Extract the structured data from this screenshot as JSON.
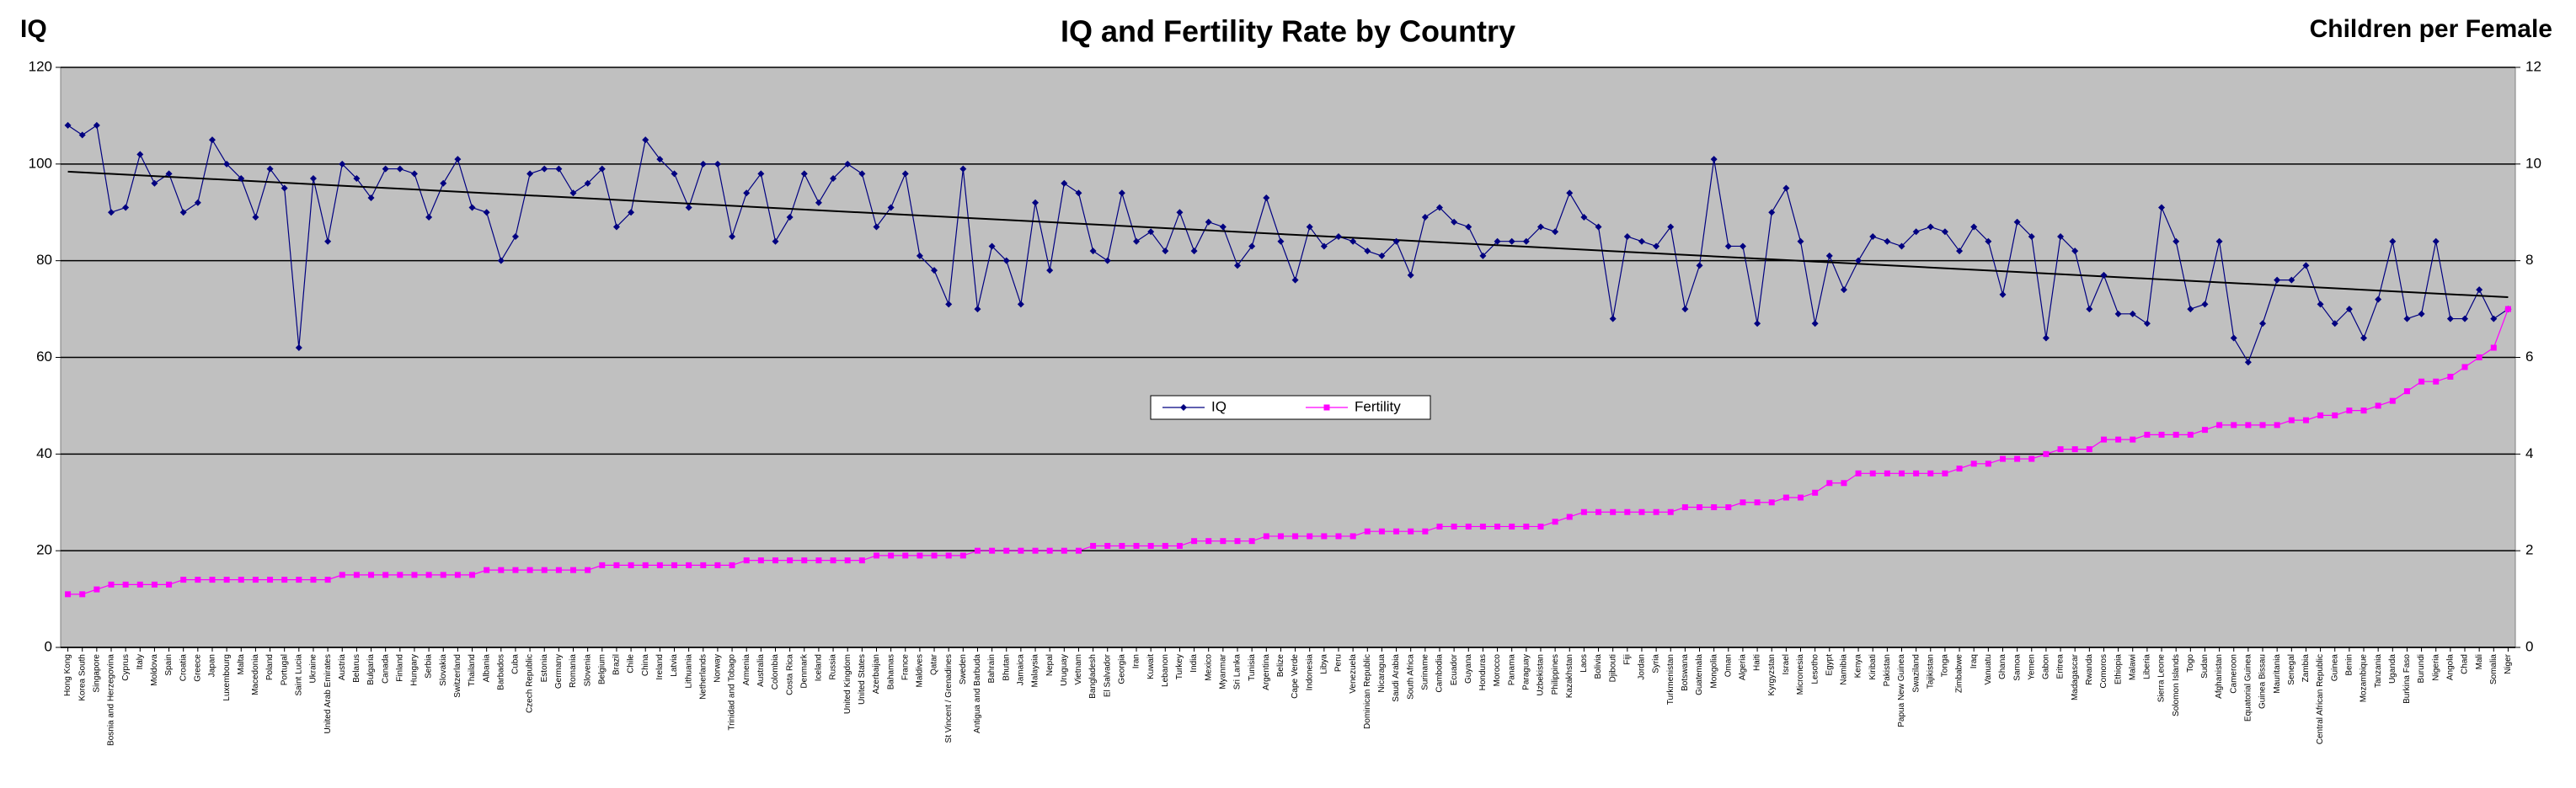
{
  "chart_data": {
    "type": "line",
    "title": "IQ and Fertility Rate by Country",
    "y_label": "IQ",
    "y2_label": "Children per Female",
    "categories": [
      "Hong Kong",
      "Korea South",
      "Singapore",
      "Bosnia and Herzegovina",
      "Cyprus",
      "Italy",
      "Moldova",
      "Spain",
      "Croatia",
      "Greece",
      "Japan",
      "Luxembourg",
      "Malta",
      "Macedonia",
      "Poland",
      "Portugal",
      "Saint Lucia",
      "Ukraine",
      "United Arab Emirates",
      "Austria",
      "Belarus",
      "Bulgaria",
      "Canada",
      "Finland",
      "Hungary",
      "Serbia",
      "Slovakia",
      "Switzerland",
      "Thailand",
      "Albania",
      "Barbados",
      "Cuba",
      "Czech Republic",
      "Estonia",
      "Germany",
      "Romania",
      "Slovenia",
      "Belgium",
      "Brazil",
      "Chile",
      "China",
      "Ireland",
      "Latvia",
      "Lithuania",
      "Netherlands",
      "Norway",
      "Trinidad and Tobago",
      "Armenia",
      "Australia",
      "Colombia",
      "Costa Rica",
      "Denmark",
      "Iceland",
      "Russia",
      "United Kingdom",
      "United States",
      "Azerbaijan",
      "Bahamas",
      "France",
      "Maldives",
      "Qatar",
      "St Vincent / Grenadines",
      "Sweden",
      "Antigua and Barbuda",
      "Bahrain",
      "Bhutan",
      "Jamaica",
      "Malaysia",
      "Nepal",
      "Uruguay",
      "Vietnam",
      "Bangladesh",
      "El Salvador",
      "Georgia",
      "Iran",
      "Kuwait",
      "Lebanon",
      "Turkey",
      "India",
      "Mexico",
      "Myanmar",
      "Sri Lanka",
      "Tunisia",
      "Argentina",
      "Belize",
      "Cape Verde",
      "Indonesia",
      "Libya",
      "Peru",
      "Venezuela",
      "Dominican Republic",
      "Nicaragua",
      "Saudi Arabia",
      "South Africa",
      "Suriname",
      "Cambodia",
      "Ecuador",
      "Guyana",
      "Honduras",
      "Morocco",
      "Panama",
      "Paraguay",
      "Uzbekistan",
      "Philippines",
      "Kazakhstan",
      "Laos",
      "Bolivia",
      "Djibouti",
      "Fiji",
      "Jordan",
      "Syria",
      "Turkmenistan",
      "Botswana",
      "Guatemala",
      "Mongolia",
      "Oman",
      "Algeria",
      "Haiti",
      "Kyrgyzstan",
      "Israel",
      "Micronesia",
      "Lesotho",
      "Egypt",
      "Namibia",
      "Kenya",
      "Kiribati",
      "Pakistan",
      "Papua New Guinea",
      "Swaziland",
      "Tajikistan",
      "Tonga",
      "Zimbabwe",
      "Iraq",
      "Vanuatu",
      "Ghana",
      "Samoa",
      "Yemen",
      "Gabon",
      "Eritrea",
      "Madagascar",
      "Rwanda",
      "Comoros",
      "Ethiopia",
      "Malawi",
      "Liberia",
      "Sierra Leone",
      "Solomon Islands",
      "Togo",
      "Sudan",
      "Afghanistan",
      "Cameroon",
      "Equatorial Guinea",
      "Guinea Bissau",
      "Mauritania",
      "Senegal",
      "Zambia",
      "Central African Republic",
      "Guinea",
      "Benin",
      "Mozambique",
      "Tanzania",
      "Uganda",
      "Burkina Faso",
      "Burundi",
      "Nigeria",
      "Angola",
      "Chad",
      "Mali",
      "Somalia",
      "Niger"
    ],
    "series": [
      {
        "name": "IQ",
        "color": "#000080",
        "marker": "diamond",
        "trendline": true,
        "values": [
          108,
          106,
          108,
          90,
          91,
          102,
          96,
          98,
          90,
          92,
          105,
          100,
          97,
          89,
          99,
          95,
          62,
          97,
          84,
          100,
          97,
          93,
          99,
          99,
          98,
          89,
          96,
          101,
          91,
          90,
          80,
          85,
          98,
          99,
          99,
          94,
          96,
          99,
          87,
          90,
          105,
          101,
          98,
          91,
          100,
          100,
          85,
          94,
          98,
          84,
          89,
          98,
          92,
          97,
          100,
          98,
          87,
          91,
          98,
          81,
          78,
          71,
          99,
          70,
          83,
          80,
          71,
          92,
          78,
          96,
          94,
          82,
          80,
          94,
          84,
          86,
          82,
          90,
          82,
          88,
          87,
          79,
          83,
          93,
          84,
          76,
          87,
          83,
          85,
          84,
          82,
          81,
          84,
          77,
          89,
          91,
          88,
          87,
          81,
          84,
          84,
          84,
          87,
          86,
          94,
          89,
          87,
          68,
          85,
          84,
          83,
          87,
          70,
          79,
          101,
          83,
          83,
          67,
          90,
          95,
          84,
          67,
          81,
          74,
          80,
          85,
          84,
          83,
          86,
          87,
          86,
          82,
          87,
          84,
          73,
          88,
          85,
          64,
          85,
          82,
          70,
          77,
          69,
          69,
          67,
          91,
          84,
          70,
          71,
          84,
          64,
          59,
          67,
          76,
          76,
          79,
          71,
          67,
          70,
          64,
          72,
          84,
          68,
          69,
          84,
          68,
          68,
          74,
          68,
          70
        ]
      },
      {
        "name": "Fertility",
        "color": "#ff00ff",
        "marker": "square",
        "axis": "y2",
        "values": [
          1.1,
          1.1,
          1.2,
          1.3,
          1.3,
          1.3,
          1.3,
          1.3,
          1.4,
          1.4,
          1.4,
          1.4,
          1.4,
          1.4,
          1.4,
          1.4,
          1.4,
          1.4,
          1.4,
          1.5,
          1.5,
          1.5,
          1.5,
          1.5,
          1.5,
          1.5,
          1.5,
          1.5,
          1.5,
          1.6,
          1.6,
          1.6,
          1.6,
          1.6,
          1.6,
          1.6,
          1.6,
          1.7,
          1.7,
          1.7,
          1.7,
          1.7,
          1.7,
          1.7,
          1.7,
          1.7,
          1.7,
          1.8,
          1.8,
          1.8,
          1.8,
          1.8,
          1.8,
          1.8,
          1.8,
          1.8,
          1.9,
          1.9,
          1.9,
          1.9,
          1.9,
          1.9,
          1.9,
          2.0,
          2.0,
          2.0,
          2.0,
          2.0,
          2.0,
          2.0,
          2.0,
          2.1,
          2.1,
          2.1,
          2.1,
          2.1,
          2.1,
          2.1,
          2.2,
          2.2,
          2.2,
          2.2,
          2.2,
          2.3,
          2.3,
          2.3,
          2.3,
          2.3,
          2.3,
          2.3,
          2.4,
          2.4,
          2.4,
          2.4,
          2.4,
          2.5,
          2.5,
          2.5,
          2.5,
          2.5,
          2.5,
          2.5,
          2.5,
          2.6,
          2.7,
          2.8,
          2.8,
          2.8,
          2.8,
          2.8,
          2.8,
          2.8,
          2.9,
          2.9,
          2.9,
          2.9,
          3.0,
          3.0,
          3.0,
          3.1,
          3.1,
          3.2,
          3.4,
          3.4,
          3.6,
          3.6,
          3.6,
          3.6,
          3.6,
          3.6,
          3.6,
          3.7,
          3.8,
          3.8,
          3.9,
          3.9,
          3.9,
          4.0,
          4.1,
          4.1,
          4.1,
          4.3,
          4.3,
          4.3,
          4.4,
          4.4,
          4.4,
          4.4,
          4.5,
          4.6,
          4.6,
          4.6,
          4.6,
          4.6,
          4.7,
          4.7,
          4.8,
          4.8,
          4.9,
          4.9,
          5.0,
          5.1,
          5.3,
          5.5,
          5.5,
          5.6,
          5.8,
          6.0,
          6.2,
          7.0
        ]
      }
    ],
    "ylim": [
      0,
      120
    ],
    "yticks": [
      0,
      20,
      40,
      60,
      80,
      100,
      120
    ],
    "y2lim": [
      0,
      12
    ],
    "y2ticks": [
      0,
      2,
      4,
      6,
      8,
      10,
      12
    ],
    "grid": true,
    "legend": "center",
    "background": "#c0c0c0"
  }
}
